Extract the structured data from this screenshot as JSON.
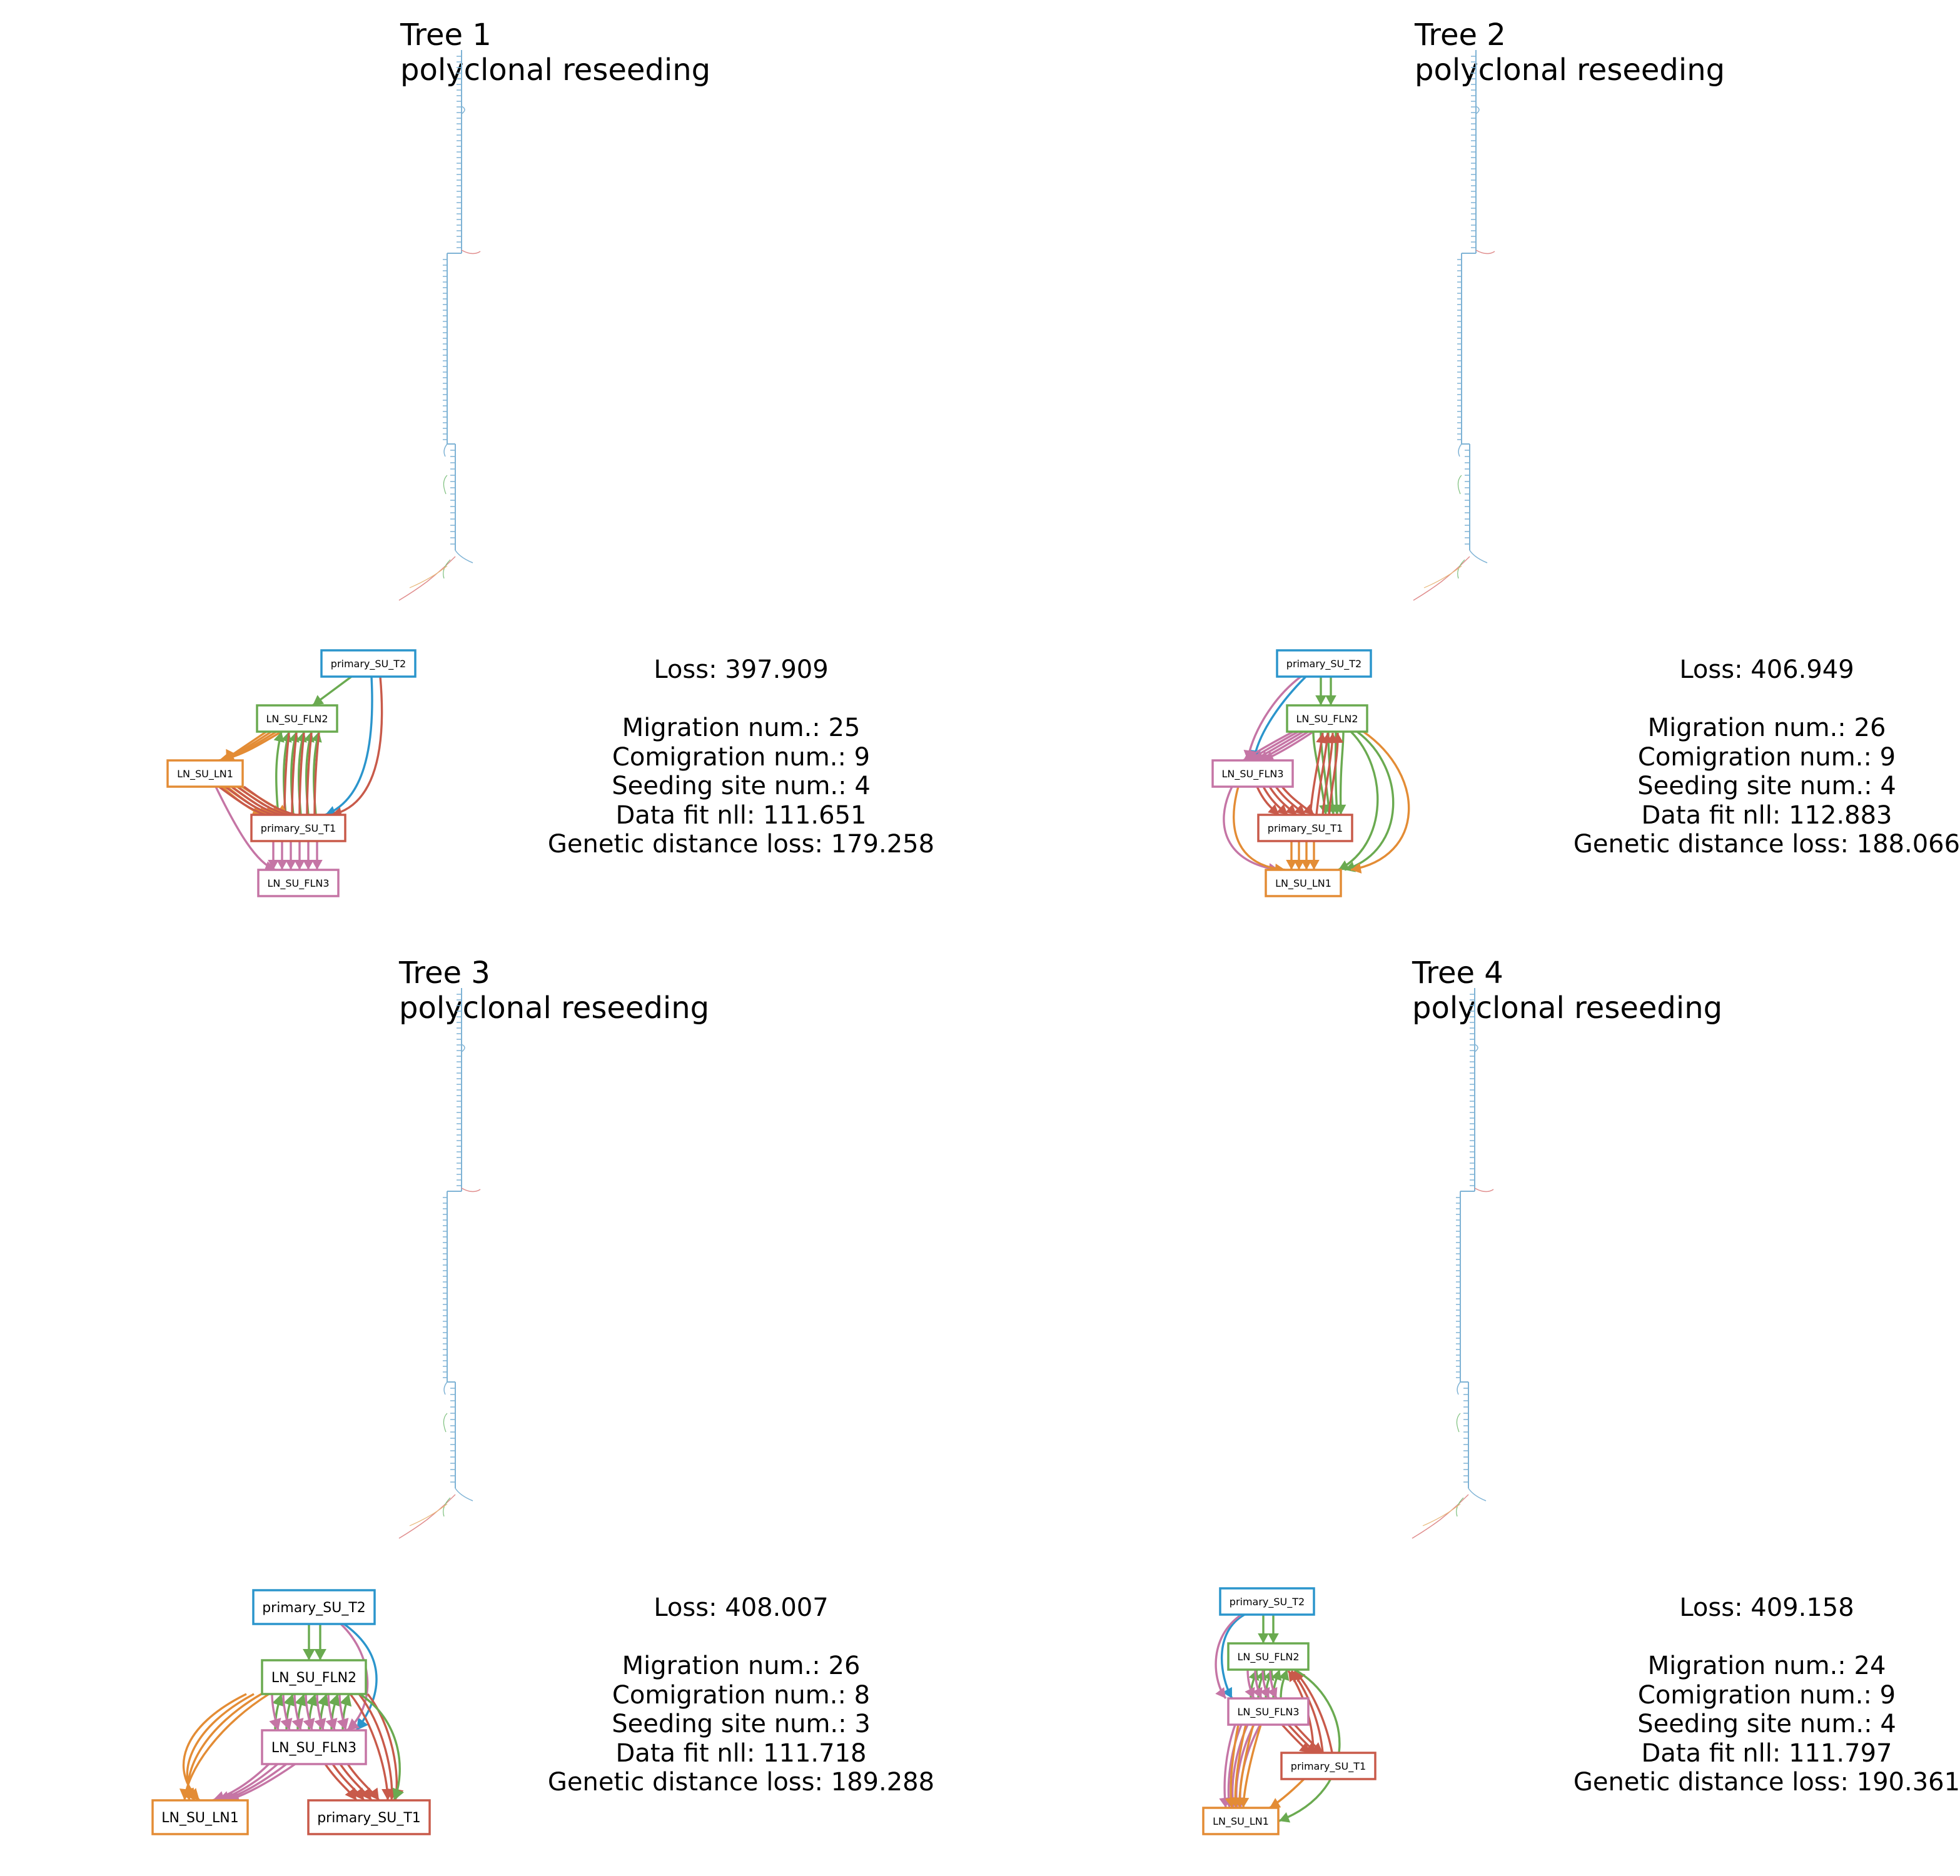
{
  "panels": [
    {
      "title": "Tree 1",
      "subtitle": "polyclonal reseeding",
      "loss": "Loss: 397.909",
      "migration": "Migration num.: 25",
      "comigration": "Comigration num.: 9",
      "seeding": "Seeding site num.: 4",
      "datafit": "Data fit nll: 111.651",
      "genetic": "Genetic distance loss: 179.258",
      "nodes": {
        "primary_SU_T2": {
          "label": "primary_SU_T2",
          "color": "#2b95cc"
        },
        "LN_SU_FLN2": {
          "label": "LN_SU_FLN2",
          "color": "#6aaa50"
        },
        "LN_SU_LN1": {
          "label": "LN_SU_LN1",
          "color": "#e38c35"
        },
        "primary_SU_T1": {
          "label": "primary_SU_T1",
          "color": "#c85a4a"
        },
        "LN_SU_FLN3": {
          "label": "LN_SU_FLN3",
          "color": "#c575a5"
        }
      }
    },
    {
      "title": "Tree 2",
      "subtitle": "polyclonal reseeding",
      "loss": "Loss: 406.949",
      "migration": "Migration num.: 26",
      "comigration": "Comigration num.: 9",
      "seeding": "Seeding site num.: 4",
      "datafit": "Data fit nll: 112.883",
      "genetic": "Genetic distance loss: 188.066",
      "nodes": {
        "primary_SU_T2": {
          "label": "primary_SU_T2",
          "color": "#2b95cc"
        },
        "LN_SU_FLN2": {
          "label": "LN_SU_FLN2",
          "color": "#6aaa50"
        },
        "LN_SU_FLN3": {
          "label": "LN_SU_FLN3",
          "color": "#c575a5"
        },
        "primary_SU_T1": {
          "label": "primary_SU_T1",
          "color": "#c85a4a"
        },
        "LN_SU_LN1": {
          "label": "LN_SU_LN1",
          "color": "#e38c35"
        }
      }
    },
    {
      "title": "Tree 3",
      "subtitle": "polyclonal reseeding",
      "loss": "Loss: 408.007",
      "migration": "Migration num.: 26",
      "comigration": "Comigration num.: 8",
      "seeding": "Seeding site num.: 3",
      "datafit": "Data fit nll: 111.718",
      "genetic": "Genetic distance loss: 189.288",
      "nodes": {
        "primary_SU_T2": {
          "label": "primary_SU_T2",
          "color": "#2b95cc"
        },
        "LN_SU_FLN2": {
          "label": "LN_SU_FLN2",
          "color": "#6aaa50"
        },
        "LN_SU_FLN3": {
          "label": "LN_SU_FLN3",
          "color": "#c575a5"
        },
        "LN_SU_LN1": {
          "label": "LN_SU_LN1",
          "color": "#e38c35"
        },
        "primary_SU_T1": {
          "label": "primary_SU_T1",
          "color": "#c85a4a"
        }
      }
    },
    {
      "title": "Tree 4",
      "subtitle": "polyclonal reseeding",
      "loss": "Loss: 409.158",
      "migration": "Migration num.: 24",
      "comigration": "Comigration num.: 9",
      "seeding": "Seeding site num.: 4",
      "datafit": "Data fit nll: 111.797",
      "genetic": "Genetic distance loss: 190.361",
      "nodes": {
        "primary_SU_T2": {
          "label": "primary_SU_T2",
          "color": "#2b95cc"
        },
        "LN_SU_FLN2": {
          "label": "LN_SU_FLN2",
          "color": "#6aaa50"
        },
        "LN_SU_FLN3": {
          "label": "LN_SU_FLN3",
          "color": "#c575a5"
        },
        "primary_SU_T1": {
          "label": "primary_SU_T1",
          "color": "#c85a4a"
        },
        "LN_SU_LN1": {
          "label": "LN_SU_LN1",
          "color": "#e38c35"
        }
      }
    }
  ]
}
